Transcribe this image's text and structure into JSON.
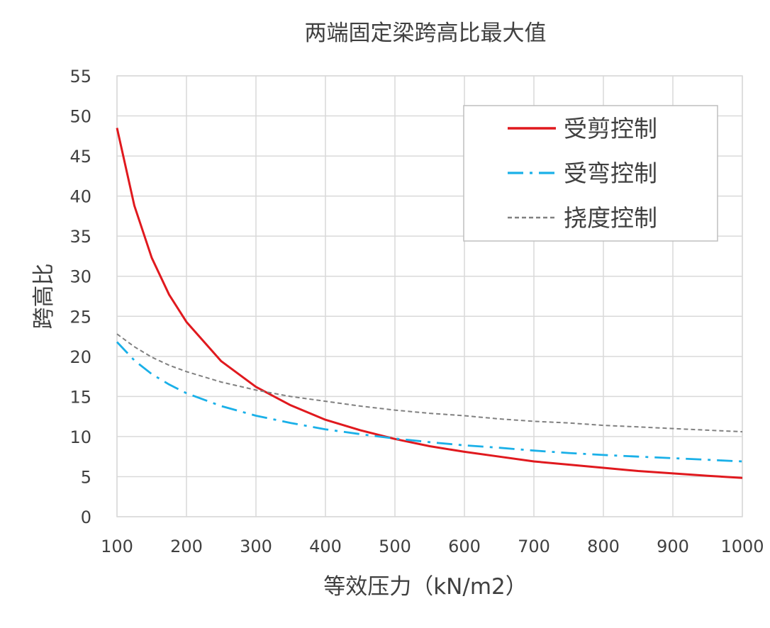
{
  "chart_data": {
    "type": "line",
    "title": "两端固定梁跨高比最大值",
    "xlabel": "等效压力（kN/m2）",
    "ylabel": "跨高比",
    "xlim": [
      100,
      1000
    ],
    "ylim": [
      0,
      55
    ],
    "xticks": [
      100,
      200,
      300,
      400,
      500,
      600,
      700,
      800,
      900,
      1000
    ],
    "yticks": [
      0,
      5,
      10,
      15,
      20,
      25,
      30,
      35,
      40,
      45,
      50,
      55
    ],
    "grid": true,
    "legend_position": "top-right",
    "x": [
      100,
      125,
      150,
      175,
      200,
      250,
      300,
      350,
      400,
      450,
      500,
      550,
      600,
      650,
      700,
      750,
      800,
      850,
      900,
      950,
      1000
    ],
    "series": [
      {
        "name": "受剪控制",
        "color": "#e0191e",
        "style": "solid",
        "values": [
          48.5,
          38.8,
          32.3,
          27.7,
          24.3,
          19.4,
          16.2,
          13.9,
          12.1,
          10.8,
          9.7,
          8.8,
          8.1,
          7.5,
          6.9,
          6.5,
          6.1,
          5.7,
          5.4,
          5.1,
          4.85
        ]
      },
      {
        "name": "受弯控制",
        "color": "#1ab0e8",
        "style": "dashdot",
        "values": [
          21.8,
          19.5,
          17.8,
          16.5,
          15.4,
          13.8,
          12.6,
          11.7,
          10.9,
          10.3,
          9.75,
          9.3,
          8.9,
          8.6,
          8.25,
          7.95,
          7.7,
          7.5,
          7.3,
          7.1,
          6.9
        ]
      },
      {
        "name": "挠度控制",
        "color": "#808080",
        "style": "dashed",
        "values": [
          22.8,
          21.2,
          19.9,
          18.9,
          18.1,
          16.8,
          15.8,
          15.0,
          14.4,
          13.8,
          13.3,
          12.9,
          12.6,
          12.2,
          11.9,
          11.7,
          11.4,
          11.2,
          11.0,
          10.8,
          10.6
        ]
      }
    ]
  }
}
